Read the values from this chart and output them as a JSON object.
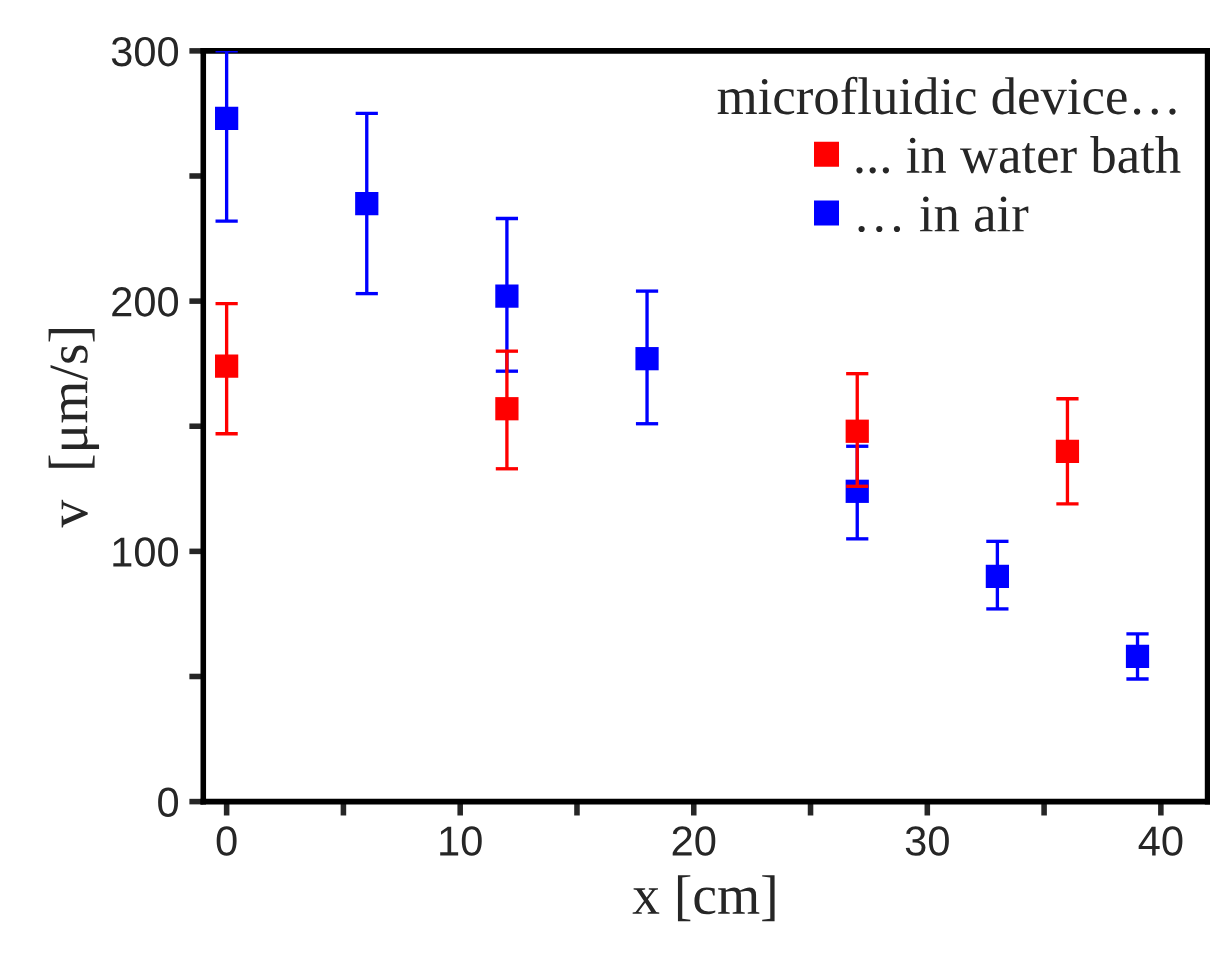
{
  "chart_data": {
    "type": "scatter",
    "xlabel": "x [cm]",
    "ylabel": "v  [μm/s]",
    "legend_title": "microfluidic device…",
    "xlim": [
      -1,
      42
    ],
    "ylim": [
      0,
      300
    ],
    "xticks": [
      0,
      {
        "value": 5,
        "label": null
      },
      10,
      {
        "value": 15,
        "label": null
      },
      20,
      {
        "value": 25,
        "label": null
      },
      30,
      {
        "value": 35,
        "label": null
      },
      40
    ],
    "yticks": [
      0,
      {
        "value": 50,
        "label": null
      },
      100,
      {
        "value": 150,
        "label": null
      },
      200,
      {
        "value": 250,
        "label": null
      },
      300
    ],
    "marker": "square",
    "legend": "top right",
    "grid": false,
    "series": [
      {
        "name": "... in water bath",
        "color": "#ff0000",
        "x": [
          0,
          12,
          27,
          36
        ],
        "values": [
          174,
          157,
          148,
          140
        ],
        "errors": [
          [
            147,
            199
          ],
          [
            133,
            180
          ],
          [
            126,
            171
          ],
          [
            119,
            161
          ]
        ]
      },
      {
        "name": "… in air",
        "color": "#0000ff",
        "x": [
          0,
          6,
          12,
          18,
          27,
          33,
          39
        ],
        "values": [
          273,
          239,
          202,
          177,
          124,
          90,
          58
        ],
        "errors": [
          [
            232,
            300
          ],
          [
            203,
            275
          ],
          [
            172,
            233
          ],
          [
            151,
            204
          ],
          [
            105,
            142
          ],
          [
            77,
            104
          ],
          [
            49,
            67
          ]
        ]
      }
    ]
  }
}
